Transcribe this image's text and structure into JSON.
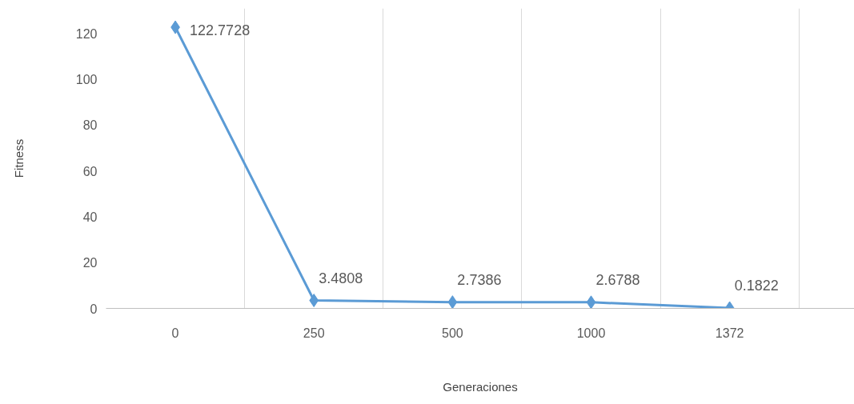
{
  "chart_data": {
    "type": "line",
    "xlabel": "Generaciones",
    "ylabel": "Fitness",
    "categories": [
      "0",
      "250",
      "500",
      "1000",
      "1372"
    ],
    "series": [
      {
        "color": "#5b9bd5",
        "values": [
          122.7728,
          3.4808,
          2.7386,
          2.6788,
          0.1822
        ]
      }
    ],
    "ylim": [
      0,
      131
    ],
    "yticks": [
      0,
      20,
      40,
      60,
      80,
      100,
      120
    ],
    "grid": "x",
    "marker": "diamond",
    "line_style": "solid",
    "data_labels": true
  }
}
